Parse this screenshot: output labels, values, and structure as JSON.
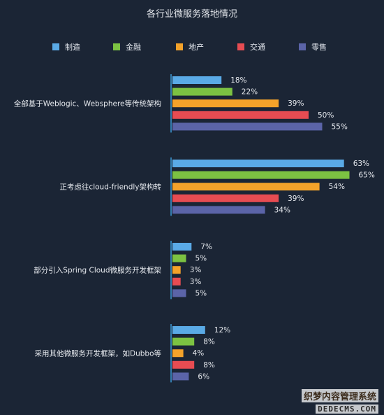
{
  "chart_data": {
    "type": "bar",
    "orientation": "horizontal",
    "title": "各行业微服务落地情况",
    "legend_position": "top",
    "categories": [
      "全部基于Weblogic、Websphere等传统架构",
      "正考虑往cloud-friendly架构转",
      "部分引入Spring Cloud微服务开发框架",
      "采用其他微服务开发框架，如Dubbo等"
    ],
    "series": [
      {
        "name": "制造",
        "color": "#5aaae6",
        "values": [
          18,
          63,
          7,
          12
        ]
      },
      {
        "name": "金融",
        "color": "#7cc242",
        "values": [
          22,
          65,
          5,
          8
        ]
      },
      {
        "name": "地产",
        "color": "#f3a22a",
        "values": [
          39,
          54,
          3,
          4
        ]
      },
      {
        "name": "交通",
        "color": "#e74c52",
        "values": [
          50,
          39,
          3,
          8
        ]
      },
      {
        "name": "零售",
        "color": "#5b64a8",
        "values": [
          55,
          34,
          5,
          6
        ]
      }
    ],
    "value_suffix": "%",
    "xlim": [
      0,
      100
    ],
    "grid": false
  },
  "watermark": {
    "line1": "织梦内容管理系统",
    "line2": "DEDECMS.COM"
  }
}
